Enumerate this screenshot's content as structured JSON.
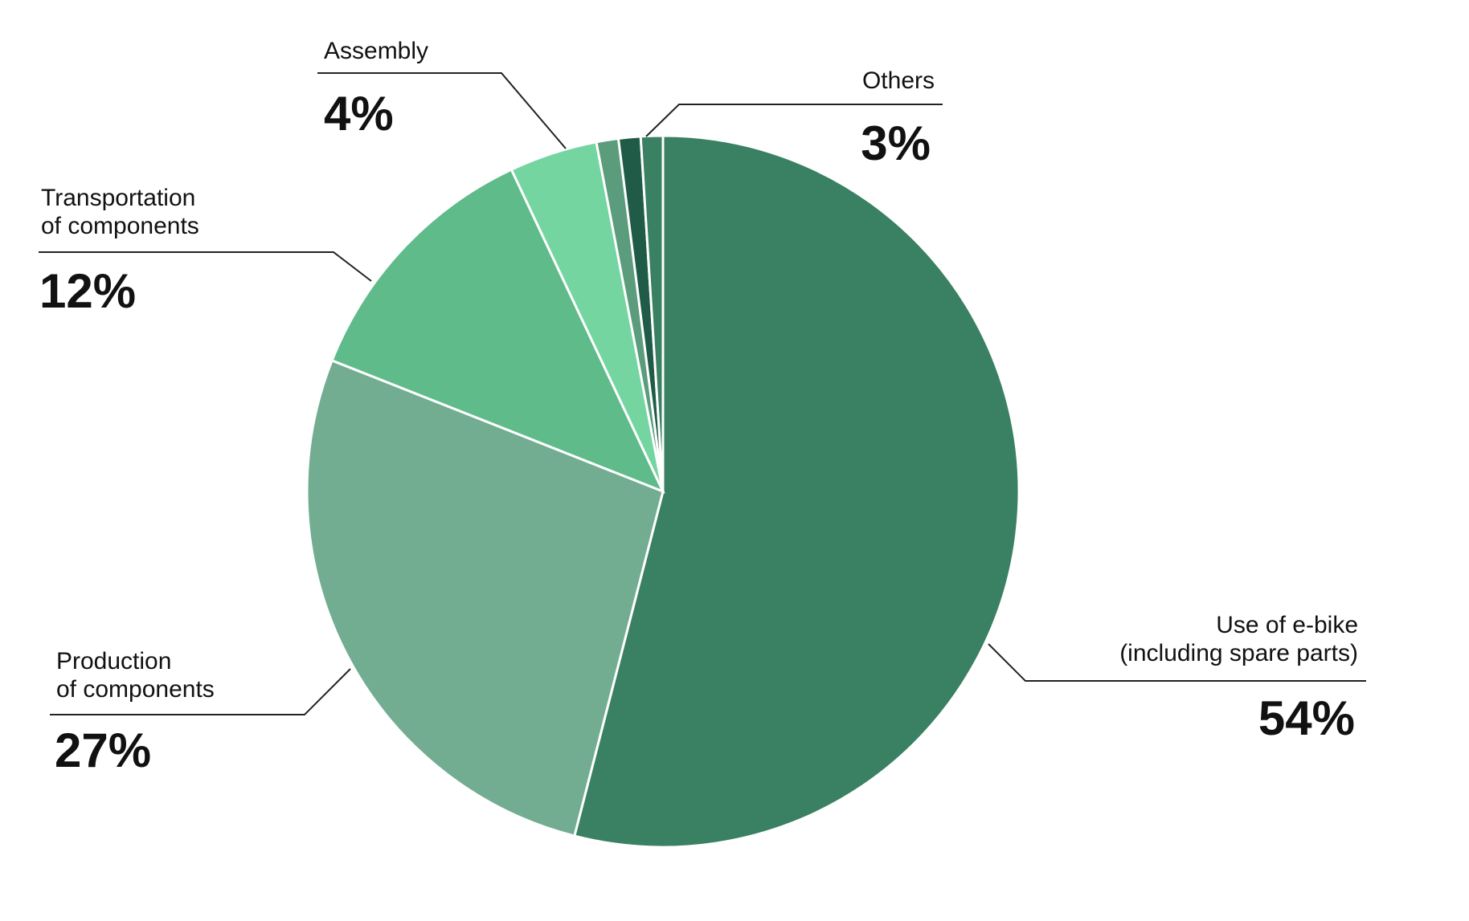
{
  "chart_data": {
    "type": "pie",
    "start_angle_deg": 0,
    "direction": "clockwise",
    "slices": [
      {
        "name": "Use of e-bike (including spare parts)",
        "lines": [
          "Use of e-bike",
          "(including spare parts)"
        ],
        "value": 54,
        "value_label": "54%",
        "color": "#3a8062"
      },
      {
        "name": "Production of components",
        "lines": [
          "Production",
          "of components"
        ],
        "value": 27,
        "value_label": "27%",
        "color": "#72ad92"
      },
      {
        "name": "Transportation of components",
        "lines": [
          "Transportation",
          "of components"
        ],
        "value": 12,
        "value_label": "12%",
        "color": "#5fbb8a"
      },
      {
        "name": "Assembly",
        "lines": [
          "Assembly"
        ],
        "value": 4,
        "value_label": "4%",
        "color": "#74d5a1"
      },
      {
        "name": "Others",
        "lines": [
          "Others"
        ],
        "value": 3,
        "value_label": "3%",
        "sub_values": [
          1,
          1,
          1
        ],
        "sub_colors": [
          "#5a9c7c",
          "#1f5b46",
          "#3a8062"
        ]
      }
    ]
  }
}
